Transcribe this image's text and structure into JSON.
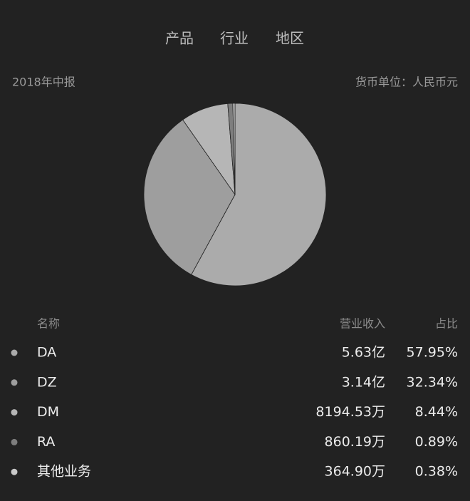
{
  "tabs": [
    "产品",
    "行业",
    "地区"
  ],
  "period": "2018年中报",
  "unit": "货币单位：人民币元",
  "chart_data": {
    "type": "pie",
    "categories": [
      "DA",
      "DZ",
      "DM",
      "RA",
      "其他业务"
    ],
    "values": [
      57.95,
      32.34,
      8.44,
      0.89,
      0.38
    ],
    "value_labels": [
      "57.95%",
      "32.34%",
      "8.44%",
      "0.89%",
      "0.38%"
    ],
    "colors": [
      "#ababab",
      "#9e9e9e",
      "#b6b6b6",
      "#7e7e7e",
      "#c9c9c9"
    ]
  },
  "table": {
    "headers": [
      "名称",
      "营业收入",
      "占比"
    ],
    "revenue": [
      "5.63亿",
      "3.14亿",
      "8194.53万",
      "860.19万",
      "364.90万"
    ]
  }
}
